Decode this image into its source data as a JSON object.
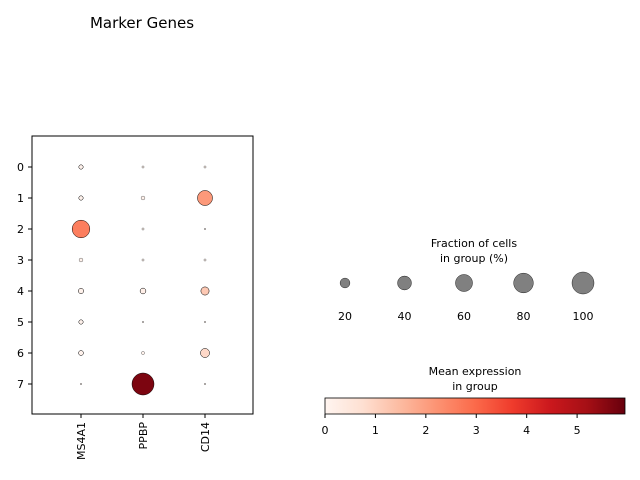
{
  "chart_data": {
    "type": "dotplot",
    "title": "Marker Genes",
    "categories": [
      "0",
      "1",
      "2",
      "3",
      "4",
      "5",
      "6",
      "7"
    ],
    "genes": [
      "MS4A1",
      "PPBP",
      "CD14"
    ],
    "points": [
      {
        "group": "0",
        "gene": "MS4A1",
        "fraction": 4,
        "mean": 0.1
      },
      {
        "group": "0",
        "gene": "PPBP",
        "fraction": 1,
        "mean": 0.05
      },
      {
        "group": "0",
        "gene": "CD14",
        "fraction": 1,
        "mean": 0.05
      },
      {
        "group": "1",
        "gene": "MS4A1",
        "fraction": 4,
        "mean": 0.1
      },
      {
        "group": "1",
        "gene": "PPBP",
        "fraction": 3,
        "mean": 0.1
      },
      {
        "group": "1",
        "gene": "CD14",
        "fraction": 47,
        "mean": 2.1
      },
      {
        "group": "2",
        "gene": "MS4A1",
        "fraction": 64,
        "mean": 2.6
      },
      {
        "group": "2",
        "gene": "PPBP",
        "fraction": 1,
        "mean": 0.05
      },
      {
        "group": "2",
        "gene": "CD14",
        "fraction": 0.5,
        "mean": 0.05
      },
      {
        "group": "3",
        "gene": "MS4A1",
        "fraction": 3,
        "mean": 0.1
      },
      {
        "group": "3",
        "gene": "PPBP",
        "fraction": 1,
        "mean": 0.05
      },
      {
        "group": "3",
        "gene": "CD14",
        "fraction": 1,
        "mean": 0.05
      },
      {
        "group": "4",
        "gene": "MS4A1",
        "fraction": 6,
        "mean": 0.1
      },
      {
        "group": "4",
        "gene": "PPBP",
        "fraction": 7,
        "mean": 0.2
      },
      {
        "group": "4",
        "gene": "CD14",
        "fraction": 14,
        "mean": 1.2
      },
      {
        "group": "5",
        "gene": "MS4A1",
        "fraction": 4,
        "mean": 0.1
      },
      {
        "group": "5",
        "gene": "PPBP",
        "fraction": 0.5,
        "mean": 0.05
      },
      {
        "group": "5",
        "gene": "CD14",
        "fraction": 0.5,
        "mean": 0.05
      },
      {
        "group": "6",
        "gene": "MS4A1",
        "fraction": 5,
        "mean": 0.1
      },
      {
        "group": "6",
        "gene": "PPBP",
        "fraction": 2,
        "mean": 0.1
      },
      {
        "group": "6",
        "gene": "CD14",
        "fraction": 17,
        "mean": 0.9
      },
      {
        "group": "7",
        "gene": "MS4A1",
        "fraction": 0.5,
        "mean": 0.05
      },
      {
        "group": "7",
        "gene": "PPBP",
        "fraction": 100,
        "mean": 5.7
      },
      {
        "group": "7",
        "gene": "CD14",
        "fraction": 0.5,
        "mean": 0.05
      }
    ],
    "size_legend": {
      "title_line1": "Fraction of cells",
      "title_line2": "in group (%)",
      "values": [
        20,
        40,
        60,
        80,
        100
      ],
      "labels": [
        "20",
        "40",
        "60",
        "80",
        "100"
      ],
      "color": "#808080"
    },
    "color_legend": {
      "title_line1": "Mean expression",
      "title_line2": "in group",
      "range": [
        0,
        5.95
      ],
      "ticks": [
        0,
        1,
        2,
        3,
        4,
        5
      ],
      "labels": [
        "0",
        "1",
        "2",
        "3",
        "4",
        "5"
      ],
      "colormap": "Reds"
    }
  }
}
